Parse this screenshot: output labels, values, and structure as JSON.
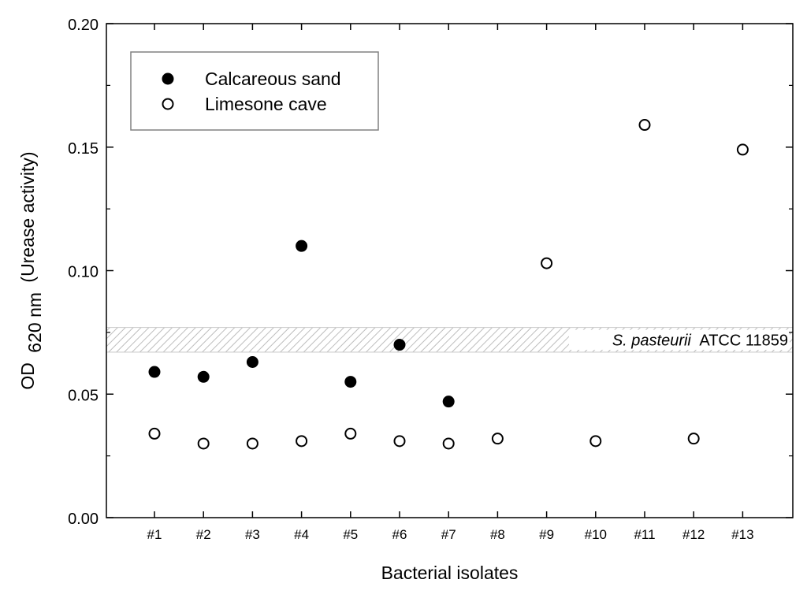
{
  "chart_data": {
    "type": "scatter",
    "xlabel": "Bacterial isolates",
    "ylabel_main": "OD",
    "ylabel_sub": "620 nm",
    "ylabel_rest": "(Urease activity)",
    "categories": [
      "#1",
      "#2",
      "#3",
      "#4",
      "#5",
      "#6",
      "#7",
      "#8",
      "#9",
      "#10",
      "#11",
      "#12",
      "#13"
    ],
    "ylim": [
      0,
      0.2
    ],
    "yticks": [
      "0.00",
      "0.05",
      "0.10",
      "0.15",
      "0.20"
    ],
    "grid": false,
    "legend_position": "top-left",
    "series": [
      {
        "name": "Calcareous sand",
        "marker": "filled-circle",
        "color": "#000000",
        "points": [
          {
            "x": "#1",
            "y": 0.059
          },
          {
            "x": "#2",
            "y": 0.057
          },
          {
            "x": "#3",
            "y": 0.063
          },
          {
            "x": "#4",
            "y": 0.11
          },
          {
            "x": "#5",
            "y": 0.055
          },
          {
            "x": "#6",
            "y": 0.07
          },
          {
            "x": "#7",
            "y": 0.047
          }
        ]
      },
      {
        "name": "Limesone cave",
        "marker": "open-circle",
        "color": "#000000",
        "points": [
          {
            "x": "#1",
            "y": 0.034
          },
          {
            "x": "#2",
            "y": 0.03
          },
          {
            "x": "#3",
            "y": 0.03
          },
          {
            "x": "#4",
            "y": 0.031
          },
          {
            "x": "#5",
            "y": 0.034
          },
          {
            "x": "#6",
            "y": 0.031
          },
          {
            "x": "#7",
            "y": 0.03
          },
          {
            "x": "#8",
            "y": 0.032
          },
          {
            "x": "#9",
            "y": 0.103
          },
          {
            "x": "#10",
            "y": 0.031
          },
          {
            "x": "#11",
            "y": 0.159
          },
          {
            "x": "#12",
            "y": 0.032
          },
          {
            "x": "#13",
            "y": 0.149
          }
        ]
      }
    ],
    "reference_band": {
      "label_italic": "S. pasteurii",
      "label_rest": "ATCC 11859",
      "y_min": 0.067,
      "y_max": 0.077,
      "pattern": "diagonal-hatch"
    }
  }
}
